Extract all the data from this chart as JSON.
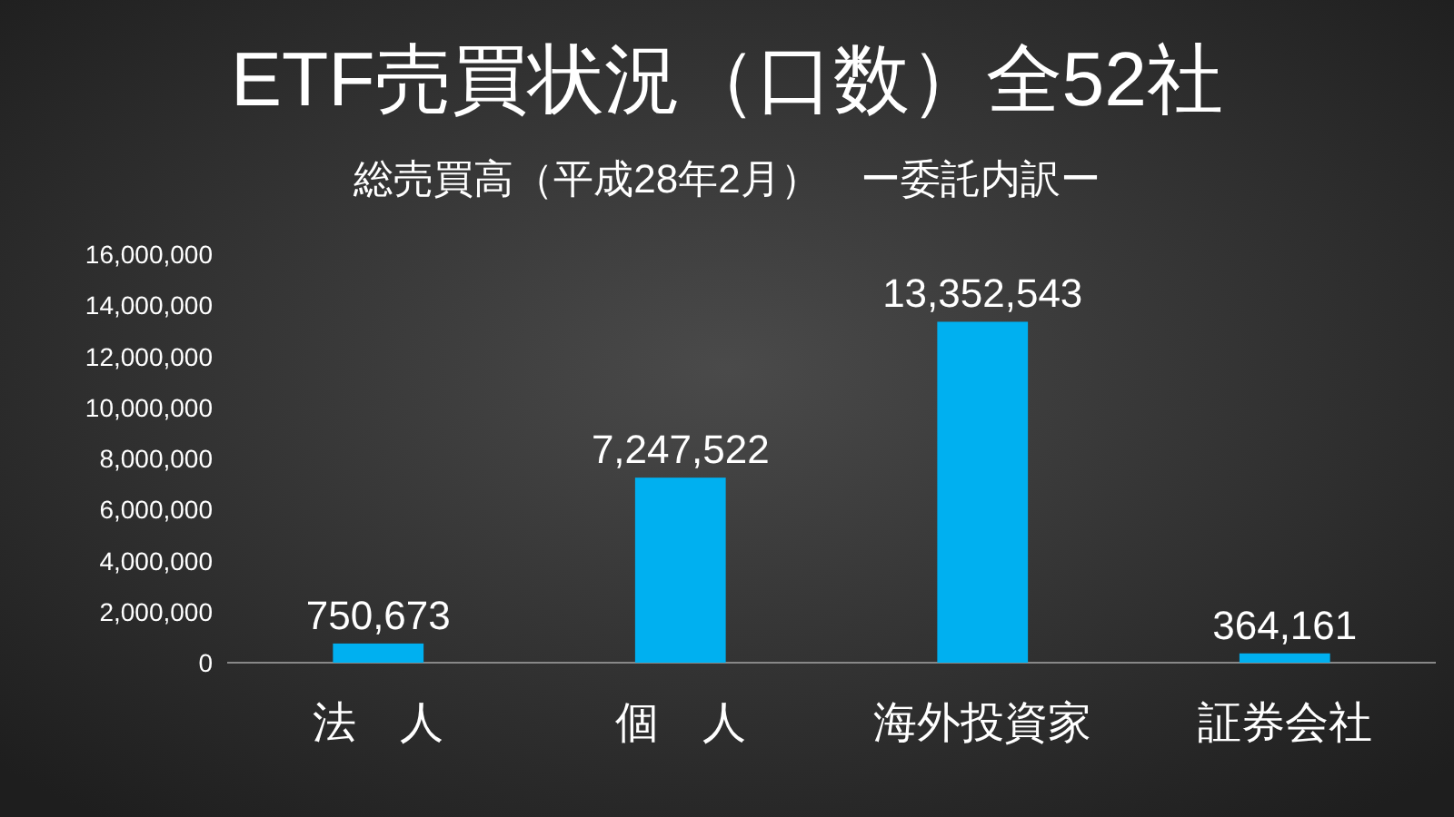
{
  "chart_data": {
    "type": "bar",
    "title": "ETF売買状況（口数）全52社",
    "subtitle": "総売買高（平成28年2月）　ー委託内訳ー",
    "categories": [
      "法　人",
      "個　人",
      "海外投資家",
      "証券会社"
    ],
    "values": [
      750673,
      7247522,
      13352543,
      364161
    ],
    "value_labels": [
      "750,673",
      "7,247,522",
      "13,352,543",
      "364,161"
    ],
    "color": "#00b0f0",
    "ylim": [
      0,
      16000000
    ],
    "yticks": [
      0,
      {
        "value": 2000000,
        "label": "2,000,000"
      },
      {
        "value": 4000000,
        "label": "4,000,000"
      },
      {
        "value": 6000000,
        "label": "6,000,000"
      },
      {
        "value": 8000000,
        "label": "8,000,000"
      },
      {
        "value": 10000000,
        "label": "10,000,000"
      },
      {
        "value": 12000000,
        "label": "12,000,000"
      },
      {
        "value": 14000000,
        "label": "14,000,000"
      },
      {
        "value": 16000000,
        "label": "16,000,000"
      }
    ],
    "grid": false
  }
}
